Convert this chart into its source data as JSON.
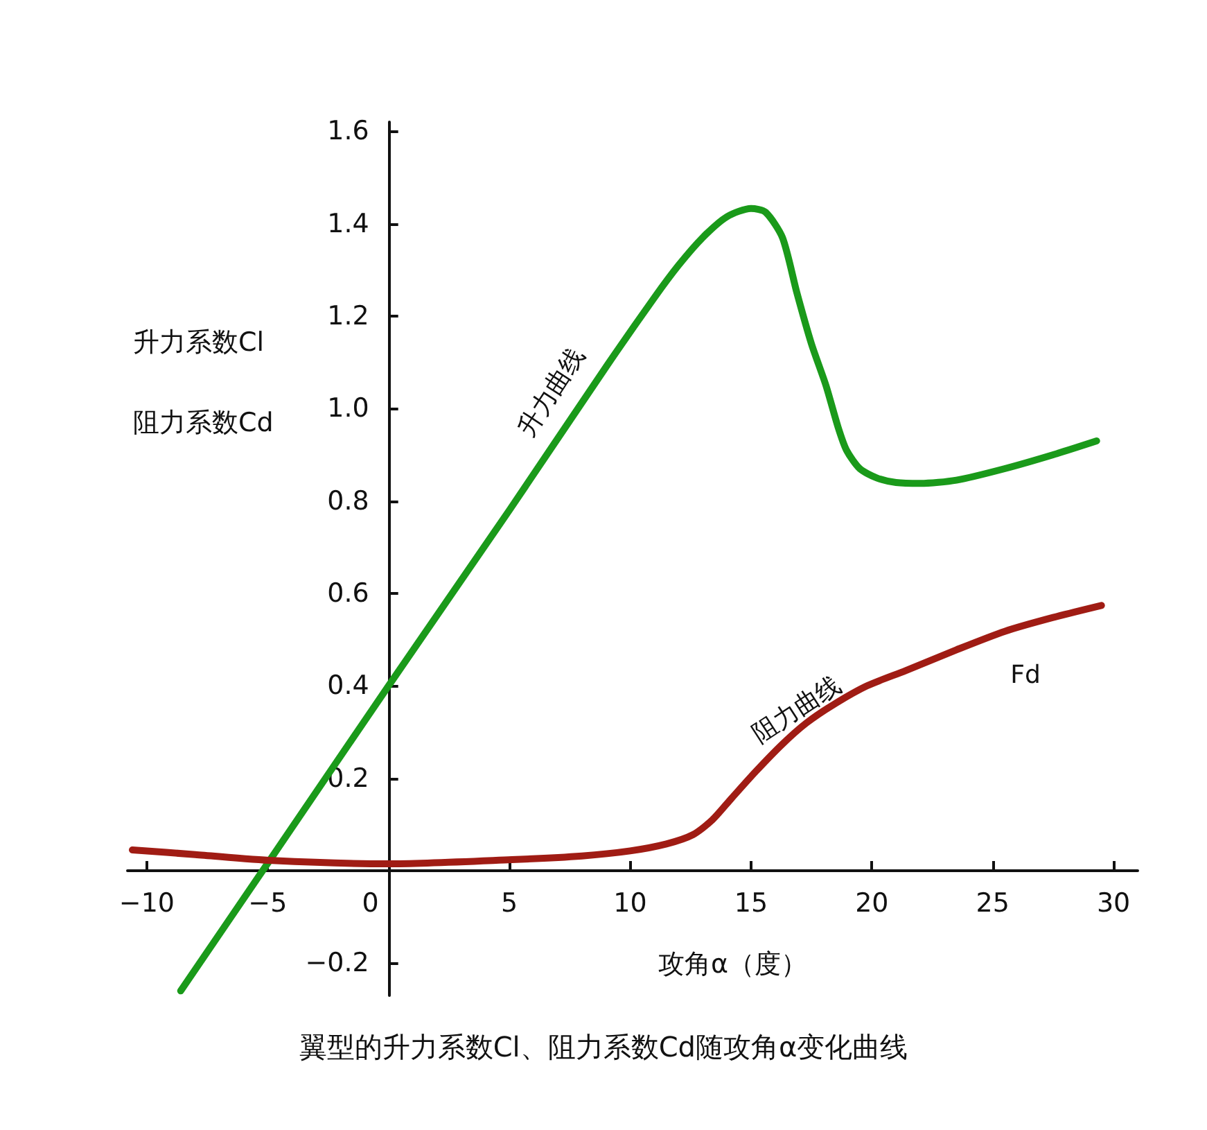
{
  "chart_data": {
    "type": "line",
    "title": "翼型的升力系数Cl、阻力系数Cd随攻角α变化曲线",
    "xlabel": "攻角α（度）",
    "ylabel": "升力系数Cl\n阻力系数Cd",
    "xlim": [
      -10.8,
      31
    ],
    "xticks": [
      {
        "value": -10,
        "label": "−10"
      },
      {
        "value": -5,
        "label": "−5"
      },
      0,
      5,
      10,
      15,
      20,
      25,
      30
    ],
    "ylim": [
      -0.27,
      1.62
    ],
    "yticks": [
      {
        "value": -0.2,
        "label": "−0.2"
      },
      {
        "value": 0,
        "label": null
      },
      0.2,
      0.4,
      0.6,
      0.8,
      {
        "value": 1,
        "label": "1.0"
      },
      1.2,
      1.4,
      1.6
    ],
    "marker": "none",
    "line_style": "solid",
    "series": [
      {
        "color": "#1a9a1a",
        "x": [
          -8.6,
          -5,
          0,
          5,
          9,
          11,
          12,
          13,
          14,
          15,
          15.6,
          16.3,
          16.9,
          17.5,
          18.1,
          18.6,
          18.95,
          19.5,
          20.2,
          21,
          22,
          23.5,
          25.5,
          27.5,
          29.3
        ],
        "values": [
          -0.26,
          0.016,
          0.4,
          0.78,
          1.09,
          1.24,
          1.31,
          1.37,
          1.415,
          1.433,
          1.425,
          1.37,
          1.25,
          1.14,
          1.05,
          0.96,
          0.91,
          0.87,
          0.85,
          0.84,
          0.838,
          0.845,
          0.87,
          0.9,
          0.93
        ]
      },
      {
        "color": "#a01c14",
        "x": [
          -10.6,
          -8,
          -4.8,
          0,
          5.1,
          8,
          10,
          11.5,
          12.6,
          13.4,
          14.2,
          15.2,
          16.3,
          17.3,
          18.4,
          19.8,
          21.4,
          23.5,
          25.5,
          27.5,
          29.5
        ],
        "values": [
          0.045,
          0.035,
          0.022,
          0.015,
          0.024,
          0.032,
          0.043,
          0.058,
          0.078,
          0.11,
          0.157,
          0.215,
          0.274,
          0.32,
          0.359,
          0.4,
          0.433,
          0.478,
          0.518,
          0.548,
          0.574
        ]
      }
    ],
    "annotations": [
      "升力曲线",
      "阻力曲线",
      "Fd"
    ]
  }
}
